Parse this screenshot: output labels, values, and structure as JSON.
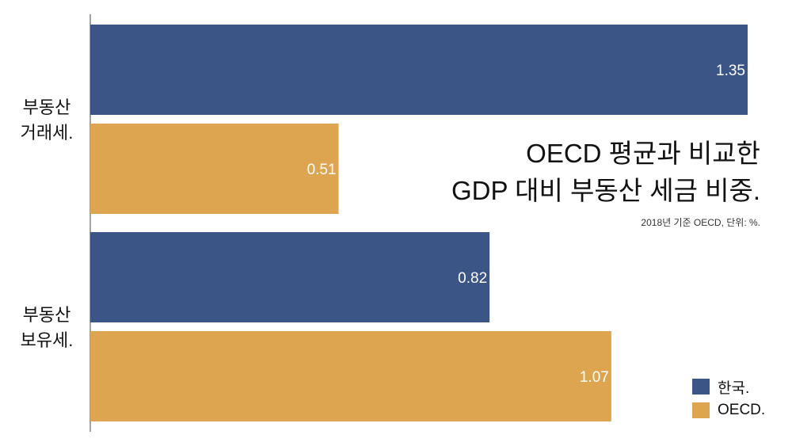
{
  "title_lines": [
    "OECD 평균과 비교한",
    "GDP 대비 부동산 세금 비중."
  ],
  "subtitle": "2018년 기준 OECD, 단위: %.",
  "colors": {
    "korea": "#3b5587",
    "oecd": "#dea550"
  },
  "legend": [
    {
      "label": "한국.",
      "color": "#3b5587",
      "icon": "square-swatch"
    },
    {
      "label": "OECD.",
      "color": "#dea550",
      "icon": "square-swatch"
    }
  ],
  "chart_data": {
    "type": "bar",
    "orientation": "horizontal",
    "categories": [
      {
        "lines": [
          "부동산",
          "거래세."
        ]
      },
      {
        "lines": [
          "부동산",
          "보유세."
        ]
      }
    ],
    "series": [
      {
        "name": "한국.",
        "values": [
          1.35,
          0.82
        ],
        "labels": [
          "1.35",
          "0.82"
        ]
      },
      {
        "name": "OECD.",
        "values": [
          0.51,
          1.07
        ],
        "labels": [
          "0.51",
          "1.07"
        ]
      }
    ],
    "xlim": [
      0,
      1.35
    ],
    "grid": false,
    "legend_position": "bottom-right"
  }
}
